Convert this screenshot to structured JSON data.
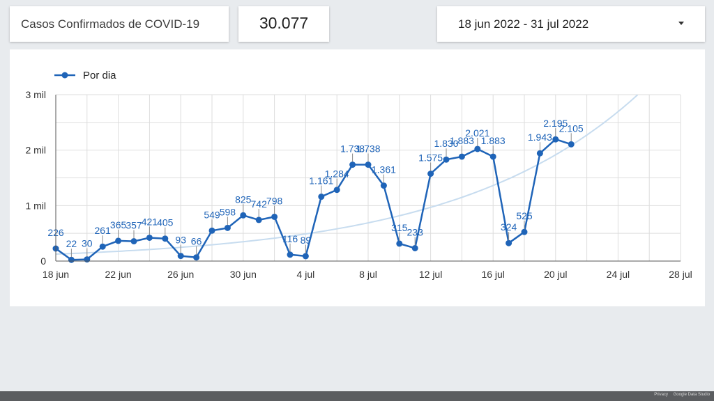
{
  "header": {
    "title": "Casos Confirmados de COVID-19",
    "total_value": "30.077",
    "date_range": "18 jun 2022 - 31 jul 2022"
  },
  "footer": {
    "privacy": "Privacy",
    "brand": "Google Data Studio"
  },
  "colors": {
    "series": "#1f64b8",
    "trendline": "#c7dcef",
    "grid": "#dddddd",
    "axis": "#555555"
  },
  "chart_data": {
    "type": "line",
    "legend": {
      "position": "top-left",
      "label": "Por dia"
    },
    "x_ticks": [
      "18 jun",
      "22 jun",
      "26 jun",
      "30 jun",
      "4 jul",
      "8 jul",
      "12 jul",
      "16 jul",
      "20 jul",
      "24 jul",
      "28 jul"
    ],
    "y_ticks": [
      "0",
      "1 mil",
      "2 mil",
      "3 mil"
    ],
    "ylim": [
      0,
      3000
    ],
    "xlim": [
      "2022-06-18",
      "2022-07-28"
    ],
    "grid": true,
    "trendline": "exponential",
    "series": [
      {
        "name": "Por dia",
        "points": [
          {
            "x": "2022-06-18",
            "y": 226,
            "label": "226"
          },
          {
            "x": "2022-06-19",
            "y": 22,
            "label": "22"
          },
          {
            "x": "2022-06-20",
            "y": 30,
            "label": "30"
          },
          {
            "x": "2022-06-21",
            "y": 261,
            "label": "261"
          },
          {
            "x": "2022-06-22",
            "y": 365,
            "label": "365"
          },
          {
            "x": "2022-06-23",
            "y": 357,
            "label": "357"
          },
          {
            "x": "2022-06-24",
            "y": 421,
            "label": "421"
          },
          {
            "x": "2022-06-25",
            "y": 405,
            "label": "405"
          },
          {
            "x": "2022-06-26",
            "y": 93,
            "label": "93"
          },
          {
            "x": "2022-06-27",
            "y": 66,
            "label": "66"
          },
          {
            "x": "2022-06-28",
            "y": 549,
            "label": "549"
          },
          {
            "x": "2022-06-29",
            "y": 598,
            "label": "598"
          },
          {
            "x": "2022-06-30",
            "y": 825,
            "label": "825"
          },
          {
            "x": "2022-07-01",
            "y": 742,
            "label": "742"
          },
          {
            "x": "2022-07-02",
            "y": 798,
            "label": "798"
          },
          {
            "x": "2022-07-03",
            "y": 116,
            "label": "116"
          },
          {
            "x": "2022-07-04",
            "y": 89,
            "label": "89"
          },
          {
            "x": "2022-07-05",
            "y": 1161,
            "label": "1.161"
          },
          {
            "x": "2022-07-06",
            "y": 1284,
            "label": "1.284"
          },
          {
            "x": "2022-07-07",
            "y": 1738,
            "label": "1.738"
          },
          {
            "x": "2022-07-08",
            "y": 1738,
            "label": "1.738"
          },
          {
            "x": "2022-07-09",
            "y": 1361,
            "label": "1.361"
          },
          {
            "x": "2022-07-10",
            "y": 315,
            "label": "315"
          },
          {
            "x": "2022-07-11",
            "y": 233,
            "label": "233"
          },
          {
            "x": "2022-07-12",
            "y": 1575,
            "label": "1.575"
          },
          {
            "x": "2022-07-13",
            "y": 1830,
            "label": "1.830"
          },
          {
            "x": "2022-07-14",
            "y": 1883,
            "label": "1.883"
          },
          {
            "x": "2022-07-15",
            "y": 2021,
            "label": "2.021"
          },
          {
            "x": "2022-07-16",
            "y": 1883,
            "label": "1.883"
          },
          {
            "x": "2022-07-17",
            "y": 324,
            "label": "324"
          },
          {
            "x": "2022-07-18",
            "y": 525,
            "label": "525"
          },
          {
            "x": "2022-07-19",
            "y": 1943,
            "label": "1.943"
          },
          {
            "x": "2022-07-20",
            "y": 2195,
            "label": "2.195"
          },
          {
            "x": "2022-07-21",
            "y": 2105,
            "label": "2.105"
          }
        ]
      }
    ]
  }
}
